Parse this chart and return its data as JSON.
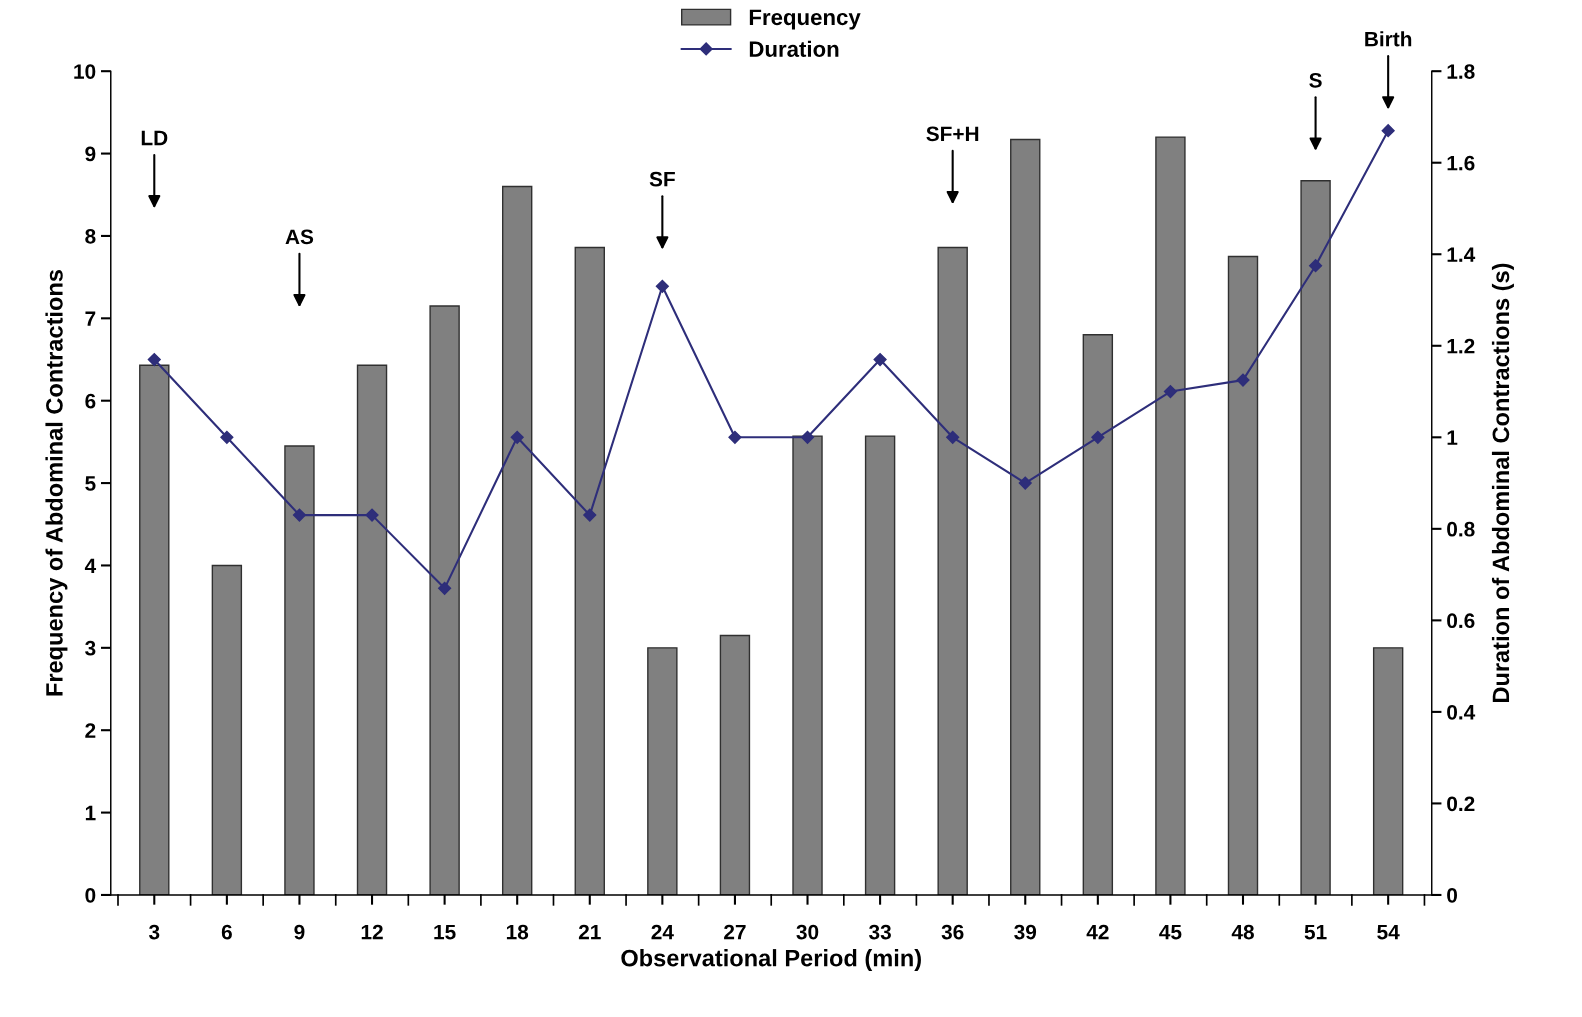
{
  "chart_data": {
    "type": "bar",
    "xlabel": "Observational Period (min)",
    "ylabel": "Frequency of Abdominal Contractions",
    "y2label": "Duration of Abdominal Contractions (s)",
    "categories": [
      "3",
      "6",
      "9",
      "12",
      "15",
      "18",
      "21",
      "24",
      "27",
      "30",
      "33",
      "36",
      "39",
      "42",
      "45",
      "48",
      "51",
      "54"
    ],
    "series": [
      {
        "name": "Frequency",
        "type": "bar",
        "color": "#808080",
        "values": [
          6.43,
          4.0,
          5.45,
          6.43,
          7.15,
          8.6,
          7.86,
          3.0,
          3.15,
          5.57,
          5.57,
          7.86,
          9.17,
          6.8,
          9.2,
          7.75,
          8.67,
          3.0
        ]
      },
      {
        "name": "Duration",
        "type": "line",
        "axis": "y2",
        "color": "#2e2e7a",
        "marker": "diamond",
        "values": [
          1.17,
          1.0,
          0.83,
          0.83,
          0.67,
          1.0,
          0.83,
          1.33,
          1.0,
          1.0,
          1.17,
          1.0,
          0.9,
          1.0,
          1.1,
          1.125,
          1.375,
          1.67
        ]
      }
    ],
    "ylim": [
      0,
      10
    ],
    "yticks": [
      0,
      1,
      2,
      3,
      4,
      5,
      6,
      7,
      8,
      9,
      10
    ],
    "y2lim": [
      0,
      1.8
    ],
    "y2ticks": [
      0,
      0.2,
      0.4,
      0.6,
      0.8,
      1,
      1.2,
      1.4,
      1.6,
      1.8
    ],
    "annotations": [
      "LD",
      "AS",
      "SF",
      "SF+H",
      "S",
      "Birth"
    ],
    "legend": "top",
    "grid": false
  }
}
